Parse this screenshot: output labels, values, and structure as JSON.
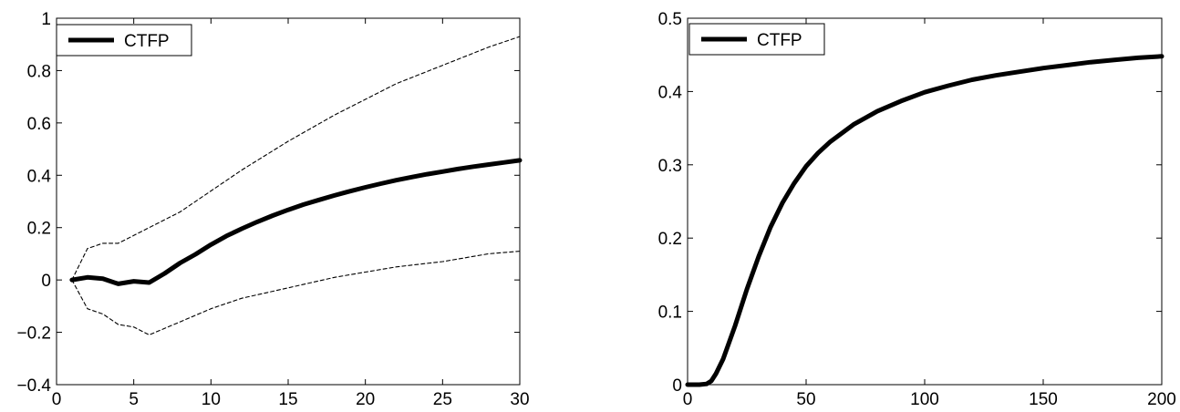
{
  "chart_data": [
    {
      "type": "line",
      "title": "",
      "xlabel": "",
      "ylabel": "",
      "xlim": [
        0,
        30
      ],
      "ylim": [
        -0.4,
        1
      ],
      "xticks": [
        0,
        5,
        10,
        15,
        20,
        25,
        30
      ],
      "yticks": [
        -0.4,
        -0.2,
        0,
        0.2,
        0.4,
        0.6,
        0.8,
        1
      ],
      "xtick_labels": [
        "0",
        "5",
        "10",
        "15",
        "20",
        "25",
        "30"
      ],
      "ytick_labels": [
        "−0.4",
        "−0.2",
        "0",
        "0.2",
        "0.4",
        "0.6",
        "0.8",
        "1"
      ],
      "grid": false,
      "legend": {
        "position": "top-left",
        "entries": [
          "CTFP"
        ]
      },
      "series": [
        {
          "name": "CTFP",
          "style": "solid-thick",
          "color": "#000000",
          "x": [
            1,
            2,
            3,
            4,
            5,
            6,
            7,
            8,
            9,
            10,
            11,
            12,
            13,
            14,
            15,
            16,
            17,
            18,
            19,
            20,
            21,
            22,
            23,
            24,
            25,
            26,
            27,
            28,
            29,
            30
          ],
          "y": [
            0,
            0.01,
            0.005,
            -0.015,
            -0.005,
            -0.01,
            0.025,
            0.065,
            0.098,
            0.135,
            0.168,
            0.196,
            0.222,
            0.246,
            0.268,
            0.288,
            0.306,
            0.323,
            0.339,
            0.354,
            0.368,
            0.381,
            0.393,
            0.404,
            0.414,
            0.424,
            0.433,
            0.441,
            0.449,
            0.457
          ]
        },
        {
          "style": "dashed-thin",
          "color": "#000000",
          "x": [
            1,
            2,
            3,
            4,
            5,
            6,
            8,
            10,
            12,
            15,
            18,
            20,
            22,
            25,
            28,
            30
          ],
          "y": [
            0,
            0.12,
            0.14,
            0.14,
            0.17,
            0.2,
            0.26,
            0.34,
            0.42,
            0.53,
            0.63,
            0.69,
            0.75,
            0.82,
            0.89,
            0.93
          ]
        },
        {
          "style": "dashed-thin",
          "color": "#000000",
          "x": [
            1,
            2,
            3,
            4,
            5,
            6,
            8,
            10,
            12,
            15,
            18,
            20,
            22,
            25,
            28,
            30
          ],
          "y": [
            0,
            -0.11,
            -0.13,
            -0.17,
            -0.18,
            -0.21,
            -0.16,
            -0.11,
            -0.07,
            -0.03,
            0.01,
            0.03,
            0.05,
            0.07,
            0.1,
            0.11
          ]
        }
      ]
    },
    {
      "type": "line",
      "title": "",
      "xlabel": "",
      "ylabel": "",
      "xlim": [
        0,
        200
      ],
      "ylim": [
        0,
        0.5
      ],
      "xticks": [
        0,
        50,
        100,
        150,
        200
      ],
      "yticks": [
        0,
        0.1,
        0.2,
        0.3,
        0.4,
        0.5
      ],
      "xtick_labels": [
        "0",
        "50",
        "100",
        "150",
        "200"
      ],
      "ytick_labels": [
        "0",
        "0.1",
        "0.2",
        "0.3",
        "0.4",
        "0.5"
      ],
      "grid": false,
      "legend": {
        "position": "top-left",
        "entries": [
          "CTFP"
        ]
      },
      "series": [
        {
          "name": "CTFP",
          "style": "solid-thick",
          "color": "#000000",
          "x": [
            0,
            5,
            8,
            10,
            12,
            15,
            20,
            25,
            30,
            35,
            40,
            45,
            50,
            55,
            60,
            70,
            80,
            90,
            100,
            110,
            120,
            130,
            140,
            150,
            160,
            170,
            180,
            190,
            200
          ],
          "y": [
            0,
            0,
            0.001,
            0.005,
            0.015,
            0.035,
            0.08,
            0.13,
            0.175,
            0.215,
            0.248,
            0.275,
            0.298,
            0.316,
            0.331,
            0.355,
            0.373,
            0.387,
            0.399,
            0.408,
            0.416,
            0.422,
            0.427,
            0.432,
            0.436,
            0.44,
            0.443,
            0.446,
            0.448
          ]
        }
      ]
    }
  ]
}
